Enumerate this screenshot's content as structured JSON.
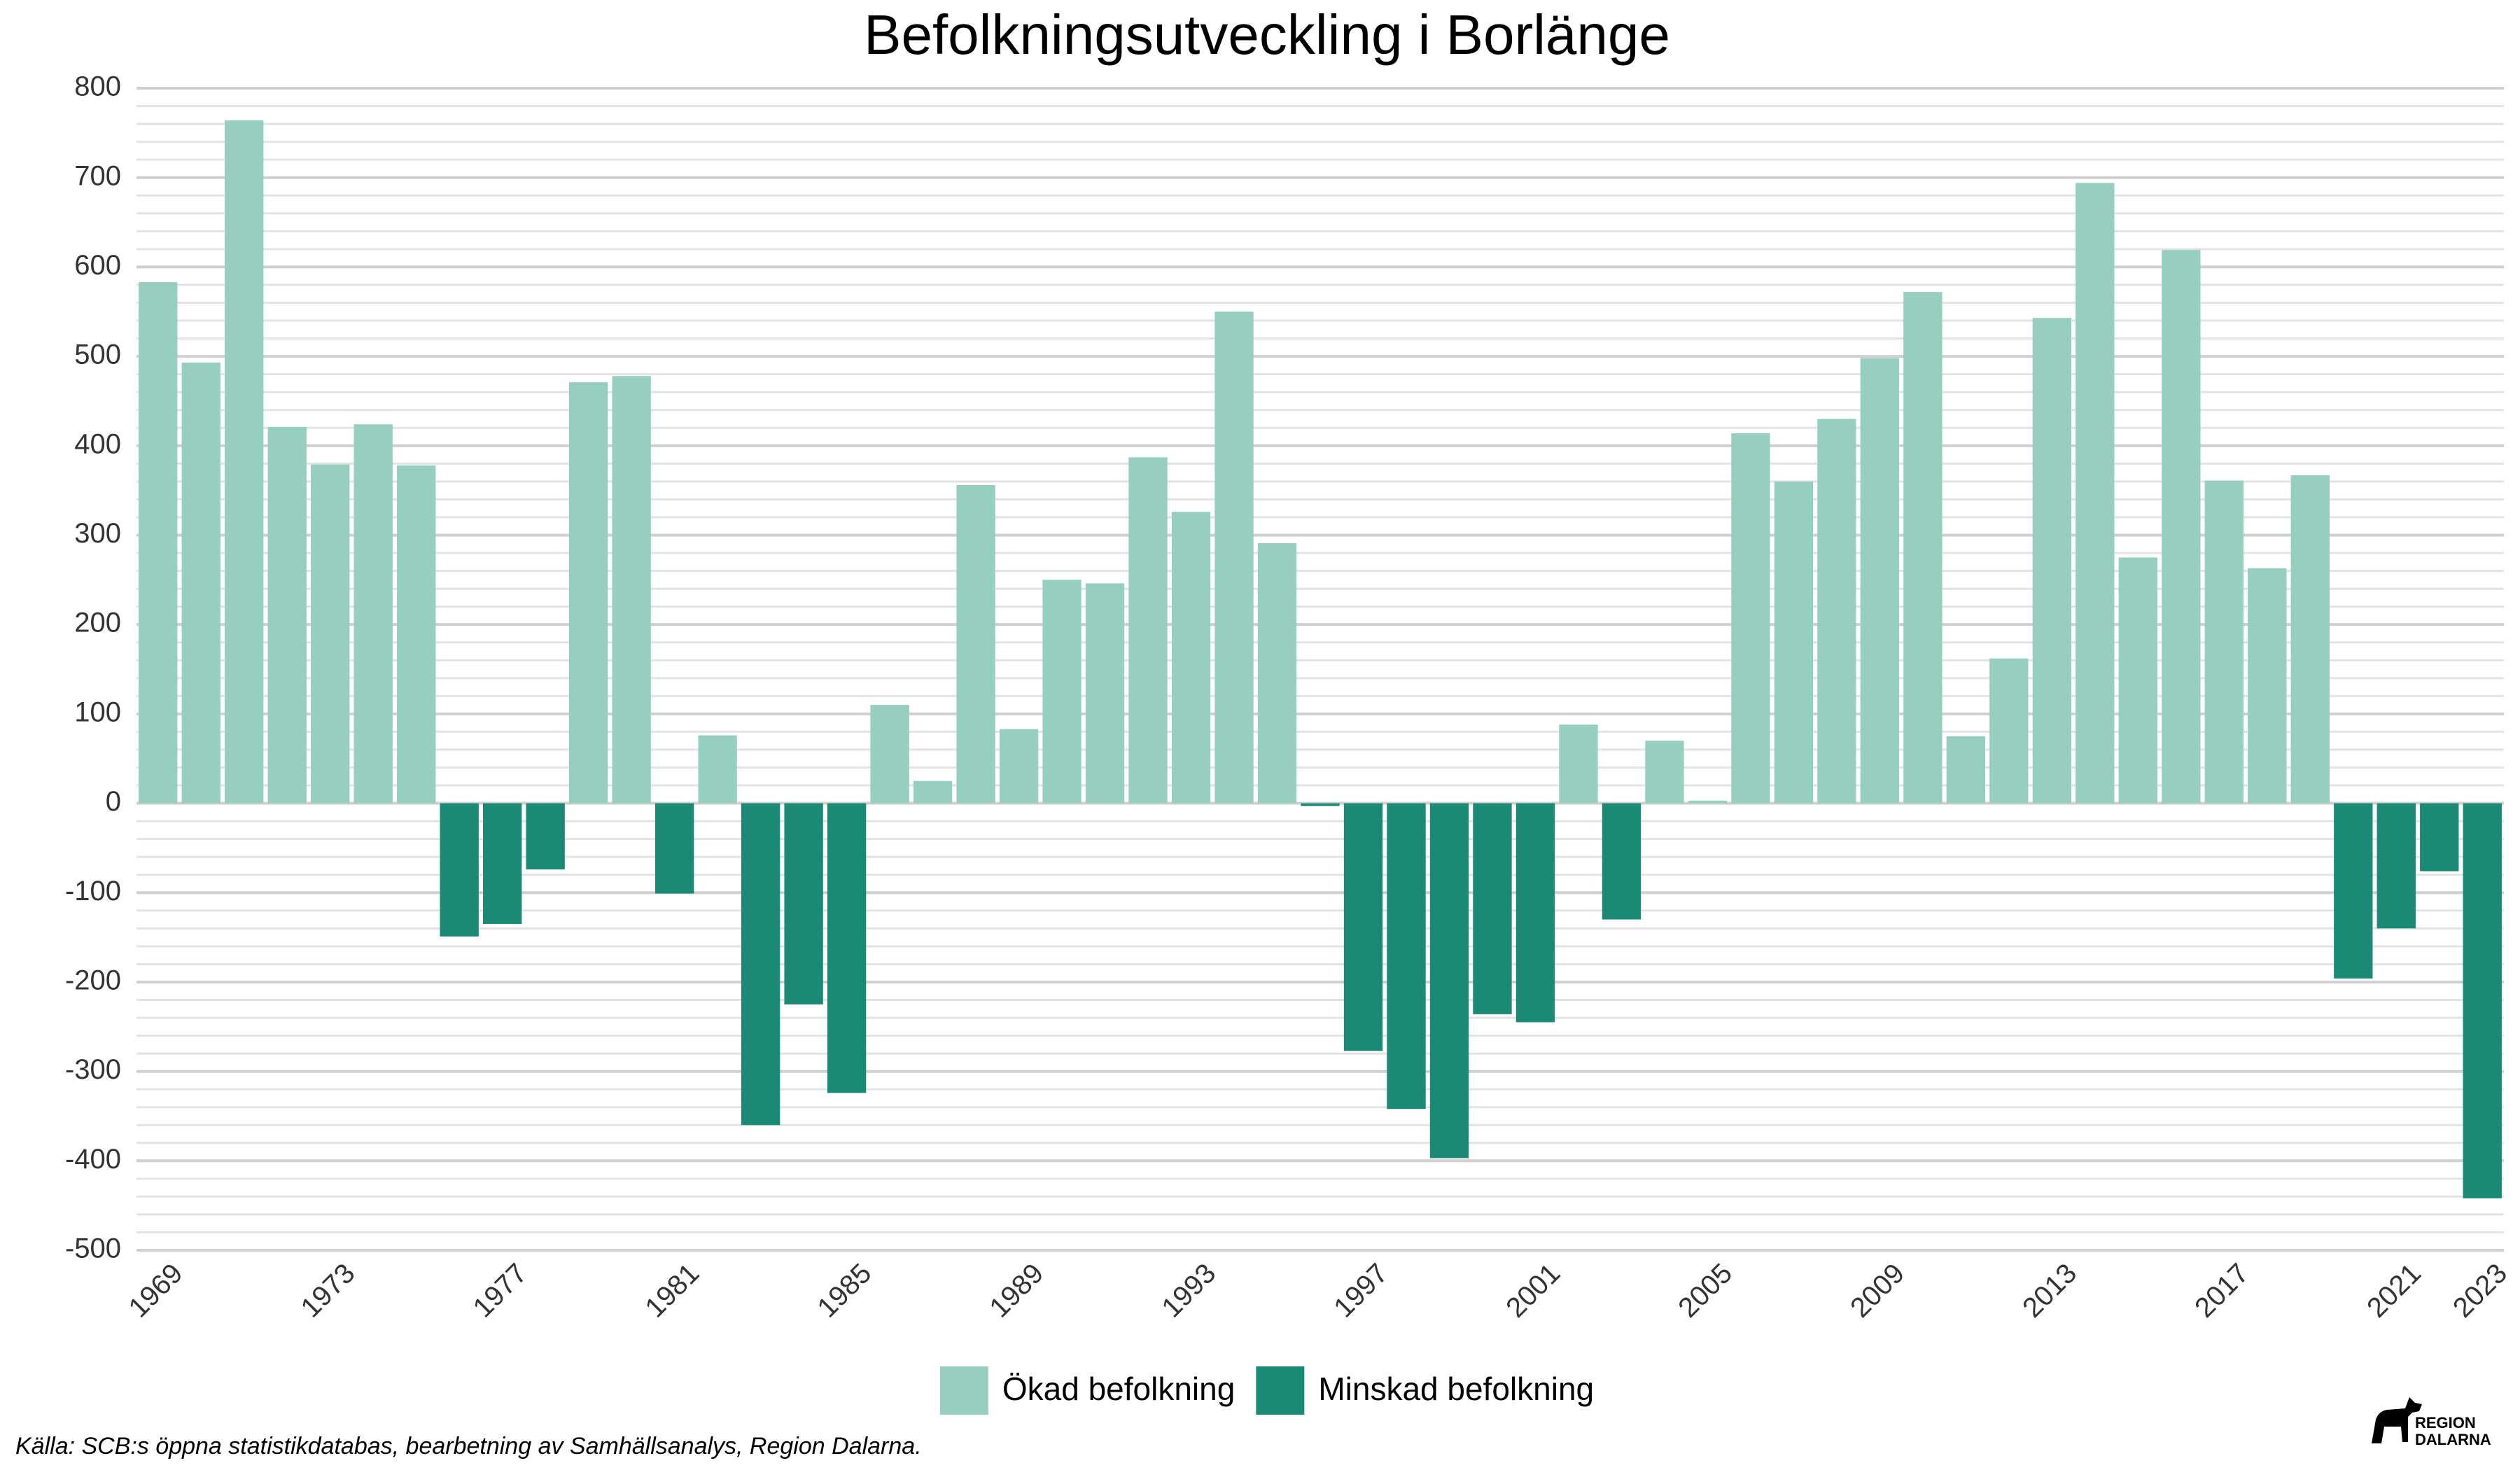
{
  "chart_data": {
    "type": "bar",
    "title": "Befolkningsutveckling i Borlänge",
    "categories": [
      "1969",
      null,
      null,
      null,
      "1973",
      null,
      null,
      null,
      "1977",
      null,
      null,
      null,
      "1981",
      null,
      null,
      null,
      "1985",
      null,
      null,
      null,
      "1989",
      null,
      null,
      null,
      "1993",
      null,
      null,
      null,
      "1997",
      null,
      null,
      null,
      "2001",
      null,
      null,
      null,
      "2005",
      null,
      null,
      null,
      "2009",
      null,
      null,
      null,
      "2013",
      null,
      null,
      null,
      "2017",
      null,
      null,
      null,
      "2021",
      null,
      "2023"
    ],
    "series": [
      {
        "name": "Ökad befolkning",
        "color": "#96cfc0",
        "values": [
          583,
          493,
          764,
          421,
          379,
          424,
          378,
          null,
          null,
          null,
          471,
          478,
          null,
          76,
          null,
          null,
          null,
          110,
          25,
          356,
          83,
          250,
          246,
          387,
          326,
          550,
          291,
          null,
          null,
          null,
          null,
          null,
          null,
          88,
          null,
          70,
          3,
          414,
          360,
          430,
          498,
          572,
          75,
          162,
          543,
          694,
          275,
          619,
          361,
          263,
          367,
          null,
          null,
          null,
          null
        ]
      },
      {
        "name": "Minskad befolkning",
        "color": "#1a8a74",
        "values": [
          null,
          null,
          null,
          null,
          null,
          null,
          null,
          -149,
          -135,
          -74,
          null,
          null,
          -101,
          null,
          -360,
          -225,
          -324,
          null,
          null,
          null,
          null,
          null,
          null,
          null,
          null,
          null,
          null,
          -3,
          -277,
          -342,
          -397,
          -236,
          -245,
          null,
          -130,
          null,
          null,
          null,
          null,
          null,
          null,
          null,
          null,
          null,
          null,
          null,
          null,
          null,
          null,
          null,
          null,
          -196,
          -140,
          -76,
          -442
        ]
      }
    ],
    "ylim": [
      -500,
      800
    ],
    "yticks": [
      -500,
      -400,
      -300,
      -200,
      -100,
      0,
      100,
      200,
      300,
      400,
      500,
      600,
      700,
      800
    ],
    "grid": true,
    "minor_grid": true,
    "legend": "bottom"
  },
  "footer": {
    "source": "Källa: SCB:s öppna statistikdatabas, bearbetning av Samhällsanalys, Region Dalarna.",
    "logo": [
      "REGION",
      "DALARNA"
    ]
  }
}
